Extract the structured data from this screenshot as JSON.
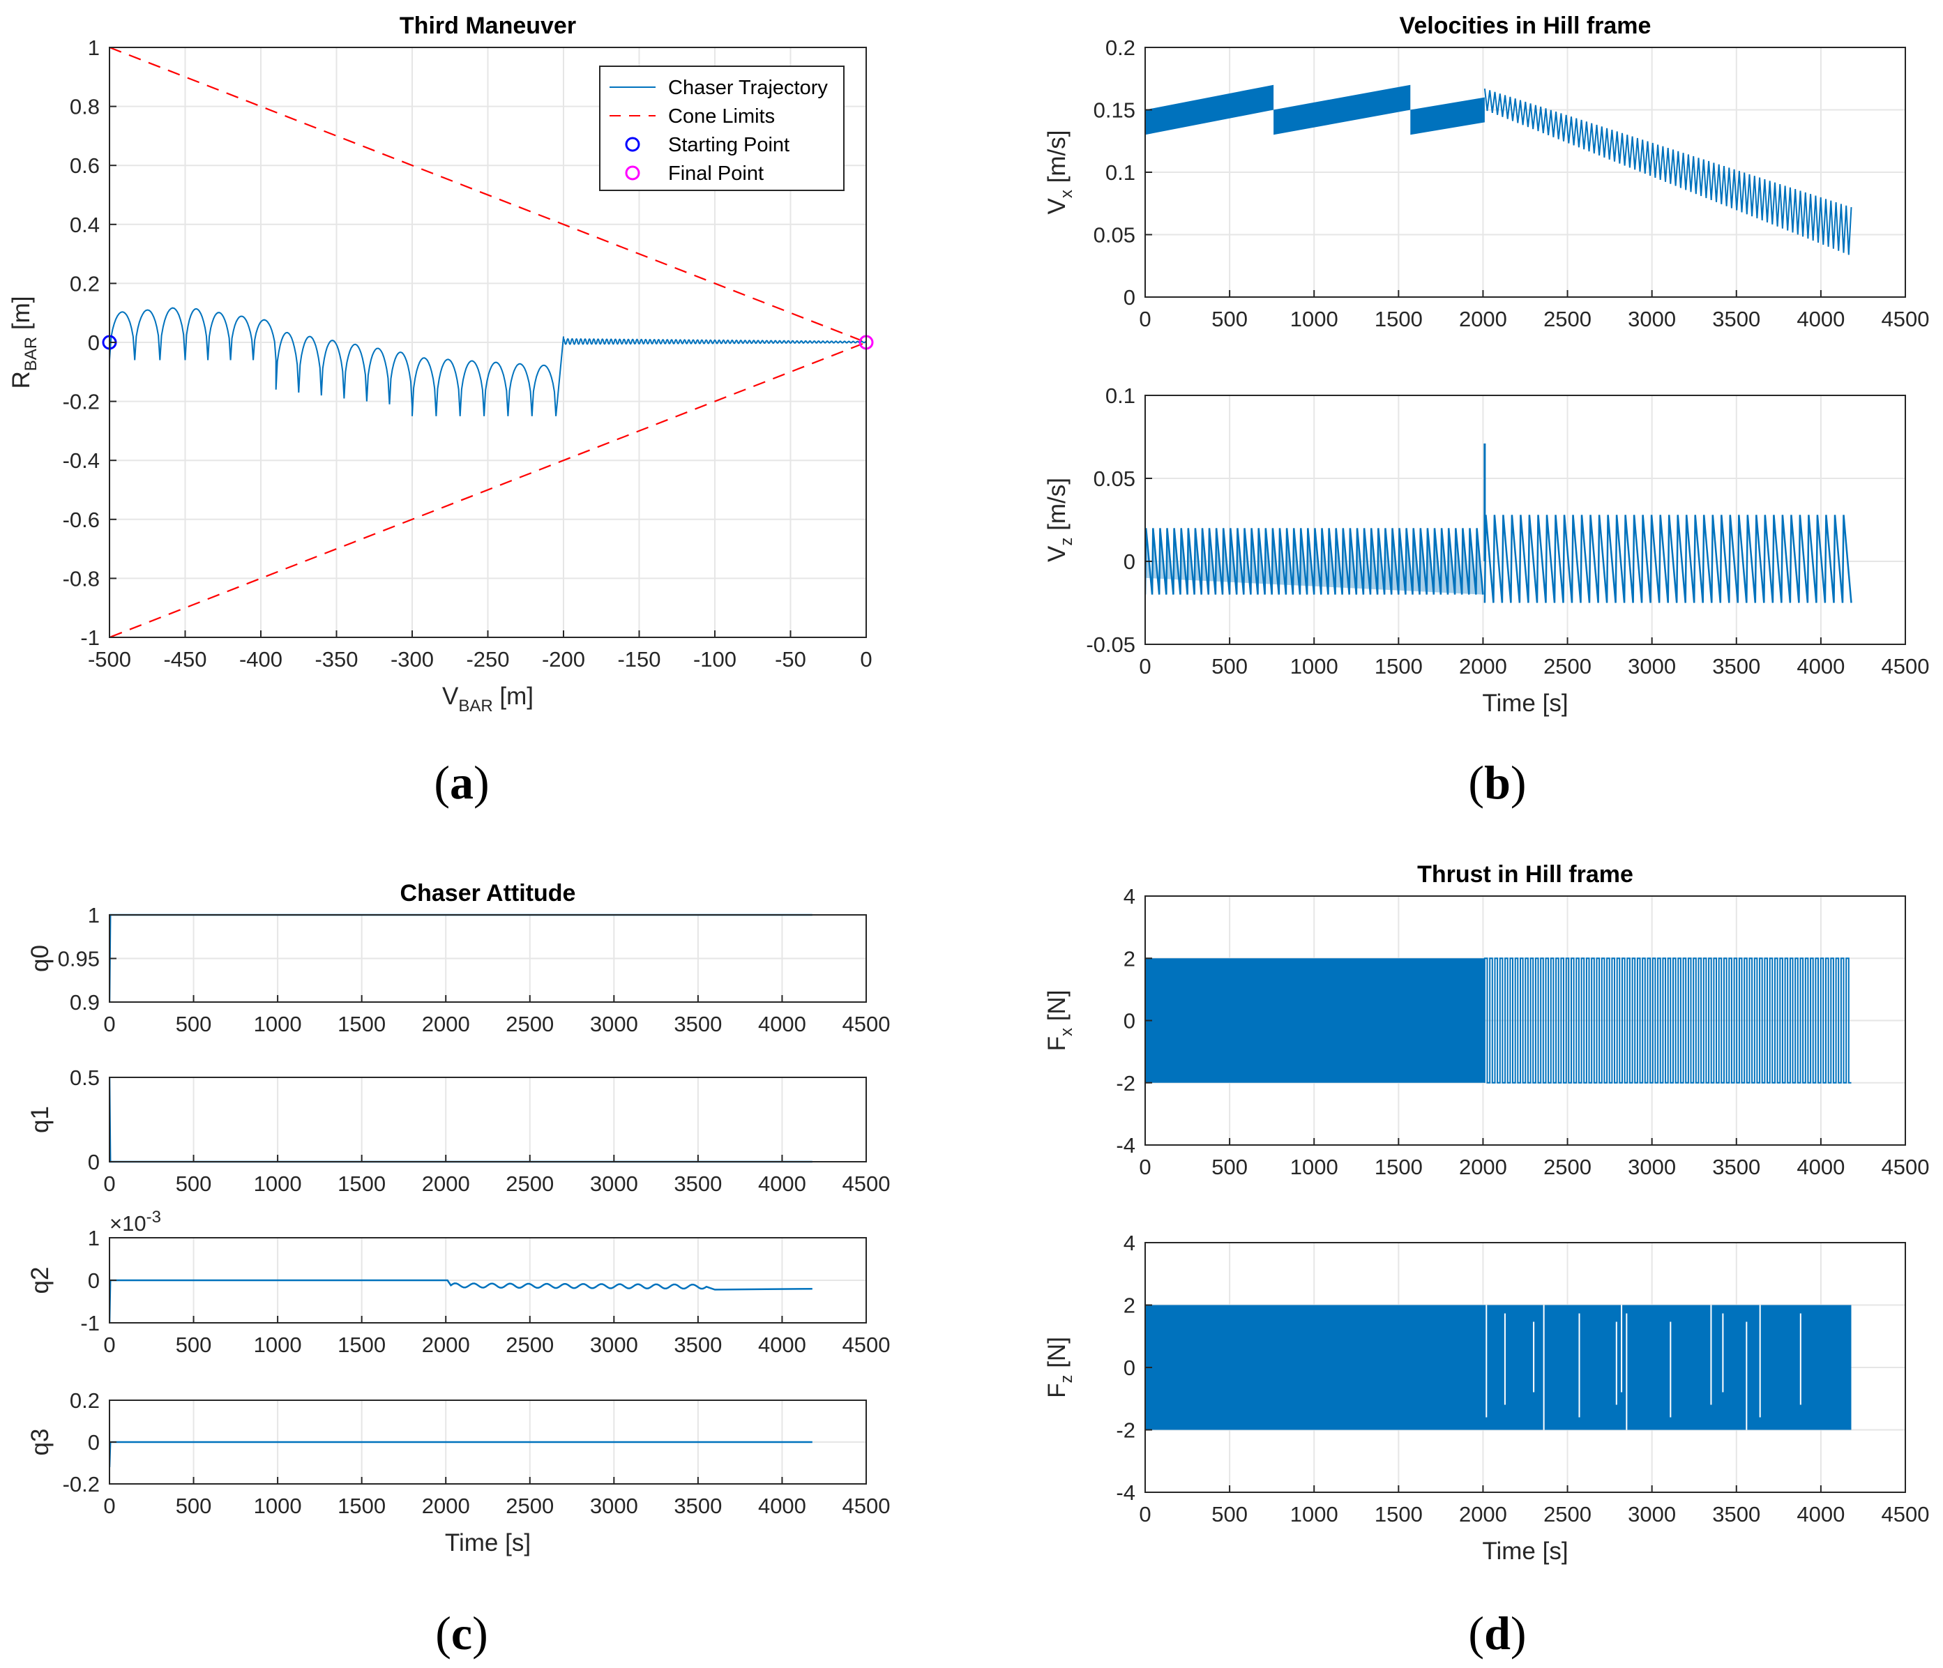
{
  "colors": {
    "series": "#0072bd",
    "cone": "#ff0000",
    "start": "#0000ff",
    "final": "#ff00ff"
  },
  "panels": {
    "a": {
      "caption_open": "(",
      "caption_letter": "a",
      "caption_close": ")"
    },
    "b": {
      "caption_open": "(",
      "caption_letter": "b",
      "caption_close": ")"
    },
    "c": {
      "caption_open": "(",
      "caption_letter": "c",
      "caption_close": ")"
    },
    "d": {
      "caption_open": "(",
      "caption_letter": "d",
      "caption_close": ")"
    }
  },
  "chart_data": [
    {
      "id": "a",
      "type": "line",
      "title": "Third Maneuver",
      "xlabel": "V",
      "xlabel_sub": "BAR",
      "xlabel_unit": " [m]",
      "ylabel": "R",
      "ylabel_sub": "BAR",
      "ylabel_unit": " [m]",
      "xlim": [
        -500,
        0
      ],
      "ylim": [
        -1,
        1
      ],
      "xticks": [
        -500,
        -450,
        -400,
        -350,
        -300,
        -250,
        -200,
        -150,
        -100,
        -50,
        0
      ],
      "yticks": [
        -1,
        -0.8,
        -0.6,
        -0.4,
        -0.2,
        0,
        0.2,
        0.4,
        0.6,
        0.8,
        1
      ],
      "grid": true,
      "legend": [
        "Chaser Trajectory",
        "Cone Limits",
        "Starting Point",
        "Final Point"
      ],
      "legend_location": "top-right",
      "series": [
        {
          "name": "Chaser Trajectory",
          "style": "oscillating",
          "segments": [
            {
              "x": [
                -500,
                -450
              ],
              "y_upper": [
                0.1,
                0.12
              ],
              "y_lower": [
                -0.06,
                -0.06
              ]
            },
            {
              "x": [
                -450,
                -390
              ],
              "y_upper": [
                0.12,
                0.07
              ],
              "y_lower": [
                -0.06,
                -0.06
              ]
            },
            {
              "x": [
                -390,
                -300
              ],
              "y_upper": [
                0.04,
                -0.04
              ],
              "y_lower": [
                -0.16,
                -0.22
              ]
            },
            {
              "x": [
                -300,
                -205
              ],
              "y_upper": [
                -0.05,
                -0.08
              ],
              "y_lower": [
                -0.25,
                -0.25
              ]
            },
            {
              "x": [
                -200,
                0
              ],
              "y_upper": [
                0.012,
                0.003
              ],
              "y_lower": [
                -0.006,
                -0.001
              ]
            }
          ]
        },
        {
          "name": "Cone Limits",
          "x": [
            -500,
            0,
            -500
          ],
          "y": [
            1,
            0,
            -1
          ]
        },
        {
          "name": "Starting Point",
          "x": [
            -500
          ],
          "y": [
            0
          ]
        },
        {
          "name": "Final Point",
          "x": [
            0
          ],
          "y": [
            0
          ]
        }
      ]
    },
    {
      "id": "b1",
      "type": "line",
      "title": "Velocities in Hill frame",
      "ylabel": "V",
      "ylabel_sub": "x",
      "ylabel_unit": " [m/s]",
      "xlim": [
        0,
        4500
      ],
      "ylim": [
        0,
        0.2
      ],
      "xticks": [
        0,
        500,
        1000,
        1500,
        2000,
        2500,
        3000,
        3500,
        4000,
        4500
      ],
      "yticks": [
        0,
        0.05,
        0.1,
        0.15,
        0.2
      ],
      "grid": true,
      "series": [
        {
          "name": "Vx",
          "bands": [
            {
              "x": [
                0,
                760
              ],
              "lower": [
                0.13,
                0.15
              ],
              "upper": [
                0.15,
                0.17
              ]
            },
            {
              "x": [
                760,
                1570
              ],
              "lower": [
                0.13,
                0.15
              ],
              "upper": [
                0.15,
                0.17
              ]
            },
            {
              "x": [
                1570,
                2010
              ],
              "lower": [
                0.13,
                0.14
              ],
              "upper": [
                0.15,
                0.16
              ]
            }
          ],
          "oscillation": {
            "x": [
              2010,
              4180
            ],
            "upper": [
              0.167,
              0.072
            ],
            "lower": [
              0.15,
              0.033
            ],
            "cycles": 72
          }
        }
      ]
    },
    {
      "id": "b2",
      "type": "line",
      "xlabel": "Time [s]",
      "ylabel": "V",
      "ylabel_sub": "z",
      "ylabel_unit": " [m/s]",
      "xlim": [
        0,
        4500
      ],
      "ylim": [
        -0.05,
        0.1
      ],
      "xticks": [
        0,
        500,
        1000,
        1500,
        2000,
        2500,
        3000,
        3500,
        4000,
        4500
      ],
      "yticks": [
        -0.05,
        0,
        0.05,
        0.1
      ],
      "grid": true,
      "series": [
        {
          "name": "Vz",
          "sawtooth": [
            {
              "x": [
                0,
                2000
              ],
              "high": 0.02,
              "low": -0.02,
              "teeth": 48
            },
            {
              "x": [
                2010,
                4180
              ],
              "high": 0.028,
              "low": -0.025,
              "teeth": 42
            }
          ],
          "spike": {
            "x": 2010,
            "y": 0.071
          }
        }
      ]
    },
    {
      "id": "c1",
      "type": "line",
      "title": "Chaser Attitude",
      "ylabel": "q0",
      "xlim": [
        0,
        4500
      ],
      "ylim": [
        0.9,
        1
      ],
      "xticks": [
        0,
        500,
        1000,
        1500,
        2000,
        2500,
        3000,
        3500,
        4000,
        4500
      ],
      "yticks": [
        0.9,
        0.95,
        1
      ],
      "grid": true,
      "series": [
        {
          "name": "q0",
          "x": [
            0,
            5,
            10,
            4180
          ],
          "y": [
            0.9,
            1,
            1,
            1
          ]
        }
      ]
    },
    {
      "id": "c2",
      "type": "line",
      "ylabel": "q1",
      "xlim": [
        0,
        4500
      ],
      "ylim": [
        0,
        0.5
      ],
      "xticks": [
        0,
        500,
        1000,
        1500,
        2000,
        2500,
        3000,
        3500,
        4000,
        4500
      ],
      "yticks": [
        0,
        0.5
      ],
      "grid": true,
      "series": [
        {
          "name": "q1",
          "x": [
            0,
            5,
            15,
            4180
          ],
          "y": [
            0.5,
            0,
            0,
            0
          ]
        }
      ]
    },
    {
      "id": "c3",
      "type": "line",
      "ylabel": "q2",
      "exponent_label": "×10",
      "exponent": "-3",
      "xlim": [
        0,
        4500
      ],
      "ylim": [
        -1,
        1
      ],
      "xticks": [
        0,
        500,
        1000,
        1500,
        2000,
        2500,
        3000,
        3500,
        4000,
        4500
      ],
      "yticks": [
        -1,
        0,
        1
      ],
      "grid": true,
      "series": [
        {
          "name": "q2",
          "x": [
            0,
            5,
            10,
            2010,
            2030,
            3550,
            3600,
            4180
          ],
          "y": [
            -1,
            0,
            0,
            0,
            -0.12,
            -0.15,
            -0.22,
            -0.2
          ],
          "ripple": {
            "x": [
              2030,
              3550
            ],
            "amplitude": 0.05,
            "cycles": 14
          }
        }
      ]
    },
    {
      "id": "c4",
      "type": "line",
      "ylabel": "q3",
      "xlabel": "Time [s]",
      "xlim": [
        0,
        4500
      ],
      "ylim": [
        -0.2,
        0.2
      ],
      "xticks": [
        0,
        500,
        1000,
        1500,
        2000,
        2500,
        3000,
        3500,
        4000,
        4500
      ],
      "yticks": [
        -0.2,
        0,
        0.2
      ],
      "grid": true,
      "series": [
        {
          "name": "q3",
          "x": [
            0,
            5,
            4180
          ],
          "y": [
            -0.12,
            0,
            0
          ]
        }
      ]
    },
    {
      "id": "d1",
      "type": "line",
      "title": "Thrust in Hill frame",
      "ylabel": "F",
      "ylabel_sub": "x",
      "ylabel_unit": " [N]",
      "xlim": [
        0,
        4500
      ],
      "ylim": [
        -4,
        4
      ],
      "xticks": [
        0,
        500,
        1000,
        1500,
        2000,
        2500,
        3000,
        3500,
        4000,
        4500
      ],
      "yticks": [
        -4,
        -2,
        0,
        2,
        4
      ],
      "grid": true,
      "series": [
        {
          "name": "Fx",
          "solid_band": {
            "x": [
              0,
              2010
            ],
            "low": -2,
            "high": 2
          },
          "pulses": {
            "x": [
              2010,
              4180
            ],
            "low": -2,
            "high": 2,
            "count": 72
          }
        }
      ]
    },
    {
      "id": "d2",
      "type": "line",
      "xlabel": "Time [s]",
      "ylabel": "F",
      "ylabel_sub": "z",
      "ylabel_unit": " [N]",
      "xlim": [
        0,
        4500
      ],
      "ylim": [
        -4,
        4
      ],
      "xticks": [
        0,
        500,
        1000,
        1500,
        2000,
        2500,
        3000,
        3500,
        4000,
        4500
      ],
      "yticks": [
        -4,
        -2,
        0,
        2,
        4
      ],
      "grid": true,
      "series": [
        {
          "name": "Fz",
          "solid_band": {
            "x": [
              0,
              4180
            ],
            "low": -2,
            "high": 2
          },
          "gaps": [
            2020,
            2130,
            2300,
            2360,
            2570,
            2790,
            2820,
            2850,
            3110,
            3350,
            3420,
            3560,
            3640,
            3880
          ]
        }
      ]
    }
  ]
}
